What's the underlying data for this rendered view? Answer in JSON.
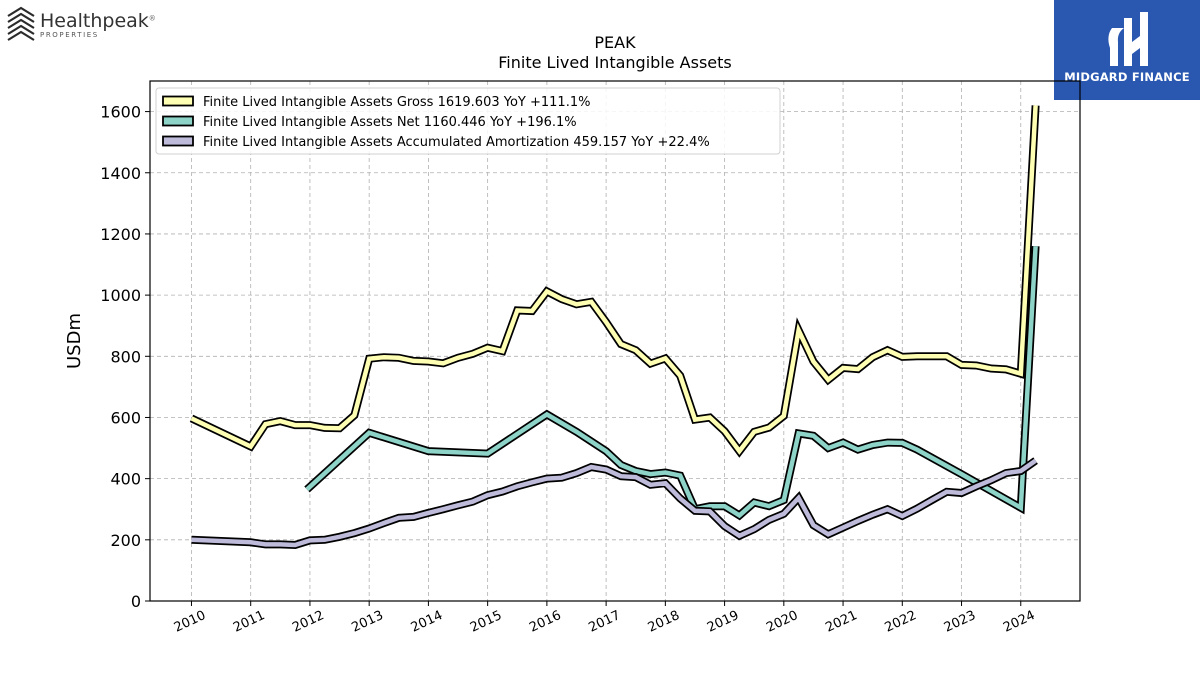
{
  "header": {
    "company_logo": {
      "name": "Healthpeak",
      "registered": "®",
      "sub": "PROPERTIES"
    },
    "badge": {
      "label": "MIDGARD FINANCE",
      "color": "#2a58b0"
    }
  },
  "chart_data": {
    "type": "line",
    "title": "PEAK",
    "subtitle": "Finite Lived Intangible Assets",
    "ylabel": "USDm",
    "xlabel": "",
    "xlim": [
      2009.3,
      2025.0
    ],
    "ylim": [
      0,
      1700
    ],
    "yticks": [
      0,
      200,
      400,
      600,
      800,
      1000,
      1200,
      1400,
      1600
    ],
    "xticks": [
      2010,
      2011,
      2012,
      2013,
      2014,
      2015,
      2016,
      2017,
      2018,
      2019,
      2020,
      2021,
      2022,
      2023,
      2024
    ],
    "grid": true,
    "legend_position": "top-left",
    "series": [
      {
        "name": "Finite Lived Intangible Assets Gross  1619.603 YoY +111.1%",
        "color": "#ffffb3",
        "points": [
          [
            2010.0,
            597
          ],
          [
            2011.0,
            505
          ],
          [
            2011.25,
            578
          ],
          [
            2011.5,
            588
          ],
          [
            2011.75,
            575
          ],
          [
            2012.0,
            575
          ],
          [
            2012.25,
            566
          ],
          [
            2012.5,
            565
          ],
          [
            2012.75,
            607
          ],
          [
            2013.0,
            792
          ],
          [
            2013.25,
            797
          ],
          [
            2013.5,
            795
          ],
          [
            2013.75,
            785
          ],
          [
            2014.0,
            783
          ],
          [
            2014.25,
            777
          ],
          [
            2014.5,
            795
          ],
          [
            2014.75,
            808
          ],
          [
            2015.0,
            828
          ],
          [
            2015.25,
            817
          ],
          [
            2015.5,
            950
          ],
          [
            2015.75,
            948
          ],
          [
            2016.0,
            1012
          ],
          [
            2016.25,
            987
          ],
          [
            2016.5,
            970
          ],
          [
            2016.75,
            978
          ],
          [
            2017.0,
            912
          ],
          [
            2017.25,
            840
          ],
          [
            2017.5,
            820
          ],
          [
            2017.75,
            776
          ],
          [
            2018.0,
            793
          ],
          [
            2018.25,
            737
          ],
          [
            2018.5,
            593
          ],
          [
            2018.75,
            600
          ],
          [
            2019.0,
            555
          ],
          [
            2019.25,
            490
          ],
          [
            2019.5,
            553
          ],
          [
            2019.75,
            567
          ],
          [
            2020.0,
            605
          ],
          [
            2020.25,
            885
          ],
          [
            2020.5,
            783
          ],
          [
            2020.75,
            723
          ],
          [
            2021.0,
            762
          ],
          [
            2021.25,
            758
          ],
          [
            2021.5,
            797
          ],
          [
            2021.75,
            820
          ],
          [
            2022.0,
            798
          ],
          [
            2022.25,
            800
          ],
          [
            2022.5,
            800
          ],
          [
            2022.75,
            800
          ],
          [
            2023.0,
            772
          ],
          [
            2023.25,
            770
          ],
          [
            2023.5,
            760
          ],
          [
            2023.75,
            757
          ],
          [
            2024.0,
            743
          ],
          [
            2024.25,
            1620
          ]
        ]
      },
      {
        "name": "Finite Lived Intangible Assets Net  1160.446 YoY +196.1%",
        "color": "#8dd3c7",
        "points": [
          [
            2011.95,
            365
          ],
          [
            2013.0,
            550
          ],
          [
            2014.0,
            490
          ],
          [
            2015.0,
            482
          ],
          [
            2016.0,
            610
          ],
          [
            2016.5,
            553
          ],
          [
            2017.0,
            490
          ],
          [
            2017.25,
            445
          ],
          [
            2017.5,
            425
          ],
          [
            2017.75,
            415
          ],
          [
            2018.0,
            420
          ],
          [
            2018.25,
            410
          ],
          [
            2018.5,
            300
          ],
          [
            2018.75,
            310
          ],
          [
            2019.0,
            310
          ],
          [
            2019.25,
            280
          ],
          [
            2019.5,
            322
          ],
          [
            2019.75,
            310
          ],
          [
            2020.0,
            330
          ],
          [
            2020.25,
            548
          ],
          [
            2020.5,
            540
          ],
          [
            2020.75,
            500
          ],
          [
            2021.0,
            518
          ],
          [
            2021.25,
            495
          ],
          [
            2021.5,
            510
          ],
          [
            2021.75,
            518
          ],
          [
            2022.0,
            517
          ],
          [
            2022.25,
            495
          ],
          [
            2023.0,
            415
          ],
          [
            2024.0,
            305
          ],
          [
            2024.25,
            1160
          ]
        ]
      },
      {
        "name": "Finite Lived Intangible Assets Accumulated Amortization  459.157 YoY +22.4%",
        "color": "#bebada",
        "points": [
          [
            2010.0,
            200
          ],
          [
            2011.0,
            192
          ],
          [
            2011.25,
            185
          ],
          [
            2011.5,
            185
          ],
          [
            2011.75,
            183
          ],
          [
            2012.0,
            198
          ],
          [
            2012.25,
            200
          ],
          [
            2012.5,
            210
          ],
          [
            2012.75,
            222
          ],
          [
            2013.0,
            237
          ],
          [
            2013.25,
            255
          ],
          [
            2013.5,
            272
          ],
          [
            2013.75,
            275
          ],
          [
            2014.0,
            288
          ],
          [
            2014.25,
            300
          ],
          [
            2014.5,
            313
          ],
          [
            2014.75,
            325
          ],
          [
            2015.0,
            346
          ],
          [
            2015.25,
            358
          ],
          [
            2015.5,
            375
          ],
          [
            2015.75,
            388
          ],
          [
            2016.0,
            400
          ],
          [
            2016.25,
            403
          ],
          [
            2016.5,
            418
          ],
          [
            2016.75,
            438
          ],
          [
            2017.0,
            430
          ],
          [
            2017.25,
            408
          ],
          [
            2017.5,
            405
          ],
          [
            2017.75,
            380
          ],
          [
            2018.0,
            385
          ],
          [
            2018.25,
            335
          ],
          [
            2018.5,
            295
          ],
          [
            2018.75,
            293
          ],
          [
            2019.0,
            245
          ],
          [
            2019.25,
            213
          ],
          [
            2019.5,
            235
          ],
          [
            2019.75,
            265
          ],
          [
            2020.0,
            285
          ],
          [
            2020.25,
            337
          ],
          [
            2020.5,
            248
          ],
          [
            2020.75,
            218
          ],
          [
            2021.0,
            240
          ],
          [
            2021.25,
            262
          ],
          [
            2021.5,
            282
          ],
          [
            2021.75,
            300
          ],
          [
            2022.0,
            278
          ],
          [
            2022.25,
            302
          ],
          [
            2022.5,
            330
          ],
          [
            2022.75,
            357
          ],
          [
            2023.0,
            353
          ],
          [
            2023.25,
            375
          ],
          [
            2023.5,
            395
          ],
          [
            2023.75,
            418
          ],
          [
            2024.0,
            425
          ],
          [
            2024.25,
            459
          ]
        ]
      }
    ]
  }
}
